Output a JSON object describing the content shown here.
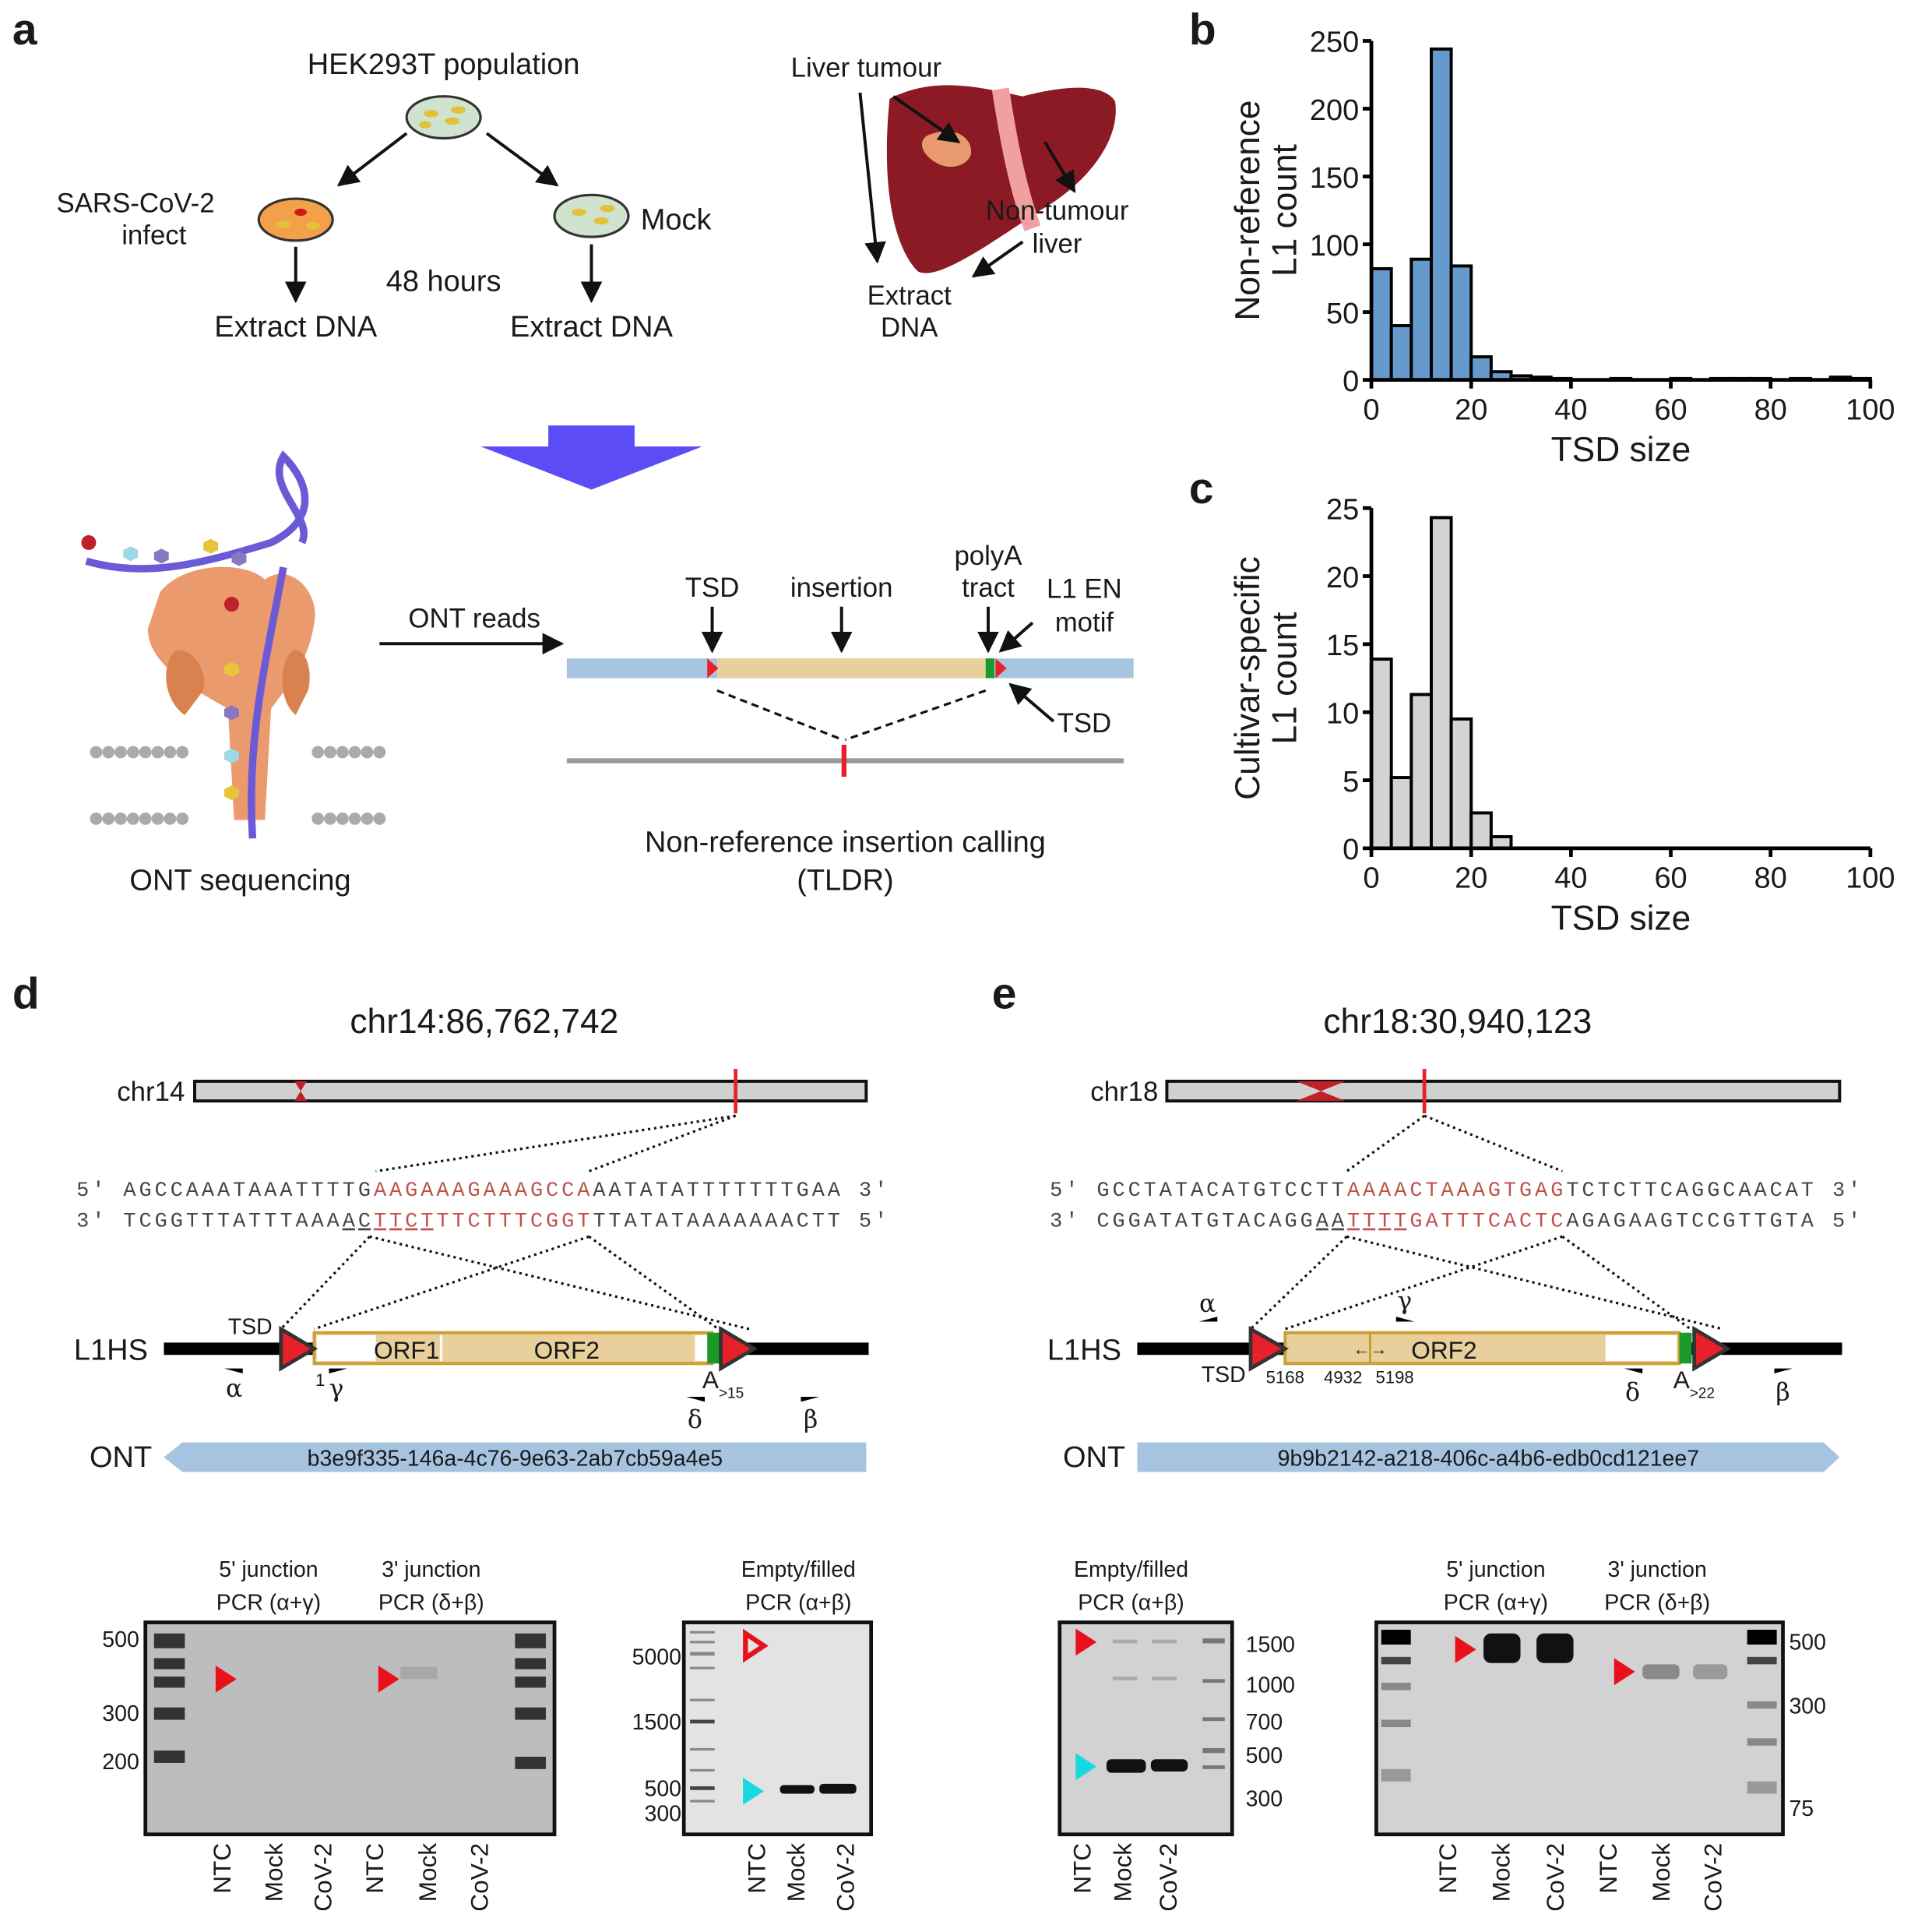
{
  "panel_labels": {
    "a": "a",
    "b": "b",
    "c": "c",
    "d": "d",
    "e": "e"
  },
  "panel_a": {
    "hek_title": "HEK293T population",
    "infect_line1": "SARS-CoV-2",
    "infect_line2": "infect",
    "mock": "Mock",
    "hours": "48 hours",
    "extract_dna": "Extract DNA",
    "liver_tumour": "Liver tumour",
    "non_tumour_line1": "Non-tumour",
    "non_tumour_line2": "liver",
    "extract_line1": "Extract",
    "extract_line2": "DNA",
    "ont_sequencing": "ONT sequencing",
    "ont_reads": "ONT reads",
    "tsd": "TSD",
    "insertion": "insertion",
    "polya_line1": "polyA",
    "polya_line2": "tract",
    "l1en_line1": "L1 EN",
    "l1en_line2": "motif",
    "tsd_right": "TSD",
    "calling_line1": "Non-reference insertion calling",
    "calling_line2": "(TLDR)",
    "colors": {
      "big_arrow": "#5b4cf5",
      "flank": "#a6c3e0",
      "insertion": "#e8cf9b",
      "tsd": "#e8202a",
      "polya": "#1a9a2a",
      "liver": "#8b1a24",
      "pore": "#eb9a6e"
    }
  },
  "chart_data": [
    {
      "type": "bar",
      "panel": "b",
      "xlabel": "TSD size",
      "ylabel_line1": "Non-reference",
      "ylabel_line2": "L1 count",
      "bin_width": 4,
      "bin_starts": [
        0,
        4,
        8,
        12,
        16,
        20,
        24,
        28,
        32,
        36,
        48,
        60,
        68,
        72,
        76,
        84,
        92,
        96
      ],
      "values": [
        82,
        40,
        89,
        244,
        84,
        17,
        6,
        3,
        2,
        1,
        1,
        1,
        1,
        1,
        1,
        1,
        2,
        1
      ],
      "xlim": [
        0,
        100
      ],
      "ylim": [
        0,
        250
      ],
      "xticks": [
        "0",
        "20",
        "40",
        "60",
        "80",
        "100"
      ],
      "yticks": [
        "0",
        "50",
        "100",
        "150",
        "200",
        "250"
      ],
      "color": "#6699cc",
      "grid": false
    },
    {
      "type": "bar",
      "panel": "c",
      "xlabel": "TSD size",
      "ylabel_line1": "Cultivar-specific",
      "ylabel_line2": "L1 count",
      "bin_width": 4,
      "bin_starts": [
        0,
        4,
        8,
        12,
        16,
        20,
        24
      ],
      "values": [
        13.9,
        5.2,
        11.3,
        24.3,
        9.5,
        2.6,
        0.85
      ],
      "xlim": [
        0,
        100
      ],
      "ylim": [
        0,
        25
      ],
      "xticks": [
        "0",
        "20",
        "40",
        "60",
        "80",
        "100"
      ],
      "yticks": [
        "0",
        "5",
        "10",
        "15",
        "20",
        "25"
      ],
      "color": "#d3d3d3",
      "grid": false
    }
  ],
  "panel_d": {
    "title": "chr14:86,762,742",
    "chrom": "chr14",
    "seq_top": {
      "p5": "5′",
      "pre": "AGCCAAATAAATTTTG",
      "tsd": "AAGAAAGAAAGCCA",
      "post": "AATATATTTTTTTGAA",
      "p3": "3′"
    },
    "seq_bottom": {
      "p3": "3′",
      "pre": "TCGGTTTATTTAAA",
      "pre_ul": "AC",
      "tsd_ul": "TTCT",
      "tsd": "TTCTTTCGGT",
      "post": "TTATATAAAAAAACTT",
      "p5": "5′"
    },
    "element": "L1HS",
    "tsd": "TSD",
    "orf1": "ORF1",
    "orf2": "ORF2",
    "start_pos": "1",
    "polya": "A",
    "polya_len": ">15",
    "primers": {
      "alpha": "α",
      "gamma": "γ",
      "delta": "δ",
      "beta": "β"
    },
    "ont_label": "ONT",
    "ont_read": "b3e9f335-146a-4c76-9e63-2ab7cb59a4e5",
    "gel1": {
      "title1_line1": "5' junction",
      "title1_line2": "PCR (α+γ)",
      "title2_line1": "3' junction",
      "title2_line2": "PCR (δ+β)",
      "ladder": [
        "500",
        "300",
        "200"
      ],
      "lanes": [
        "NTC",
        "Mock",
        "CoV-2",
        "NTC",
        "Mock",
        "CoV-2"
      ]
    },
    "gel2": {
      "title_line1": "Empty/filled",
      "title_line2": "PCR (α+β)",
      "ladder": [
        "5000",
        "1500",
        "500",
        "300"
      ],
      "lanes": [
        "NTC",
        "Mock",
        "CoV-2"
      ]
    }
  },
  "panel_e": {
    "title": "chr18:30,940,123",
    "chrom": "chr18",
    "seq_top": {
      "p5": "5′",
      "pre": "GCCTATACATGTCCTT",
      "tsd": "AAAACTAAAGTGAG",
      "post": "TCTCTTCAGGCAACAT",
      "p3": "3′"
    },
    "seq_bottom": {
      "p3": "3′",
      "pre": "CGGATATGTACAGG",
      "pre_ul": "AA",
      "tsd_ul": "TTTT",
      "tsd": "GATTTCACTC",
      "post": "AGAGAAGTCCGTTGTA",
      "p5": "5′"
    },
    "element": "L1HS",
    "tsd": "TSD",
    "orf2": "ORF2",
    "positions": [
      "5168",
      "4932",
      "5198"
    ],
    "inversion_arrows": "←→",
    "polya": "A",
    "polya_len": ">22",
    "primers": {
      "alpha": "α",
      "gamma": "γ",
      "delta": "δ",
      "beta": "β"
    },
    "ont_label": "ONT",
    "ont_read": "9b9b2142-a218-406c-a4b6-edb0cd121ee7",
    "gel1": {
      "title_line1": "Empty/filled",
      "title_line2": "PCR (α+β)",
      "ladder": [
        "1500",
        "1000",
        "700",
        "500",
        "300"
      ],
      "lanes": [
        "NTC",
        "Mock",
        "CoV-2"
      ]
    },
    "gel2": {
      "title1_line1": "5' junction",
      "title1_line2": "PCR (α+γ)",
      "title2_line1": "3' junction",
      "title2_line2": "PCR (δ+β)",
      "ladder": [
        "500",
        "300",
        "75"
      ],
      "lanes": [
        "NTC",
        "Mock",
        "CoV-2",
        "NTC",
        "Mock",
        "CoV-2"
      ]
    }
  }
}
